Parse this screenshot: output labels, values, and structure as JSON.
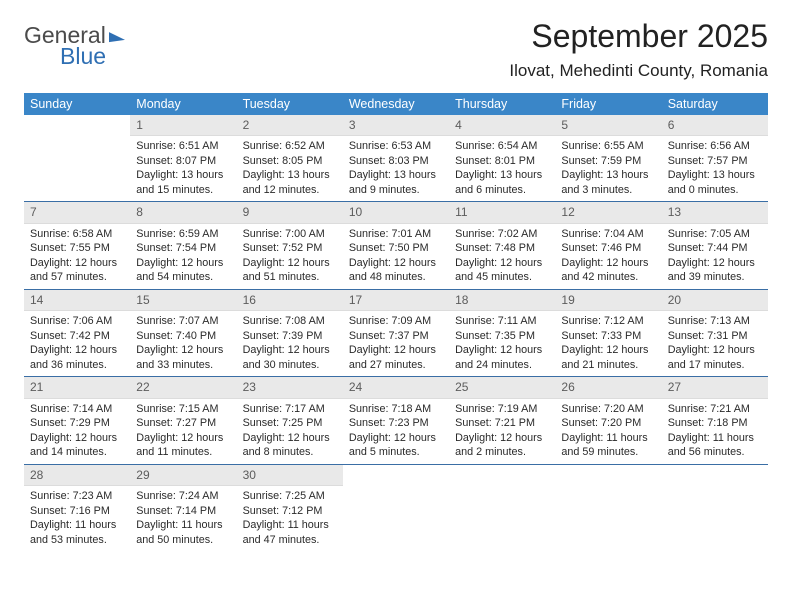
{
  "logo": {
    "top": "General",
    "bottom": "Blue"
  },
  "title": "September 2025",
  "location": "Ilovat, Mehedinti County, Romania",
  "headers": [
    "Sunday",
    "Monday",
    "Tuesday",
    "Wednesday",
    "Thursday",
    "Friday",
    "Saturday"
  ],
  "colors": {
    "header_bg": "#3a86c8",
    "header_fg": "#ffffff",
    "daynum_bg": "#e9e9e9",
    "row_border": "#3a6ea5",
    "logo_accent": "#2f6fb3"
  },
  "fonts": {
    "title_pt": 32,
    "location_pt": 17,
    "header_pt": 12.5,
    "cell_pt": 10.8
  },
  "weeks": [
    [
      null,
      {
        "n": "1",
        "sr": "6:51 AM",
        "ss": "8:07 PM",
        "dl": "13 hours and 15 minutes."
      },
      {
        "n": "2",
        "sr": "6:52 AM",
        "ss": "8:05 PM",
        "dl": "13 hours and 12 minutes."
      },
      {
        "n": "3",
        "sr": "6:53 AM",
        "ss": "8:03 PM",
        "dl": "13 hours and 9 minutes."
      },
      {
        "n": "4",
        "sr": "6:54 AM",
        "ss": "8:01 PM",
        "dl": "13 hours and 6 minutes."
      },
      {
        "n": "5",
        "sr": "6:55 AM",
        "ss": "7:59 PM",
        "dl": "13 hours and 3 minutes."
      },
      {
        "n": "6",
        "sr": "6:56 AM",
        "ss": "7:57 PM",
        "dl": "13 hours and 0 minutes."
      }
    ],
    [
      {
        "n": "7",
        "sr": "6:58 AM",
        "ss": "7:55 PM",
        "dl": "12 hours and 57 minutes."
      },
      {
        "n": "8",
        "sr": "6:59 AM",
        "ss": "7:54 PM",
        "dl": "12 hours and 54 minutes."
      },
      {
        "n": "9",
        "sr": "7:00 AM",
        "ss": "7:52 PM",
        "dl": "12 hours and 51 minutes."
      },
      {
        "n": "10",
        "sr": "7:01 AM",
        "ss": "7:50 PM",
        "dl": "12 hours and 48 minutes."
      },
      {
        "n": "11",
        "sr": "7:02 AM",
        "ss": "7:48 PM",
        "dl": "12 hours and 45 minutes."
      },
      {
        "n": "12",
        "sr": "7:04 AM",
        "ss": "7:46 PM",
        "dl": "12 hours and 42 minutes."
      },
      {
        "n": "13",
        "sr": "7:05 AM",
        "ss": "7:44 PM",
        "dl": "12 hours and 39 minutes."
      }
    ],
    [
      {
        "n": "14",
        "sr": "7:06 AM",
        "ss": "7:42 PM",
        "dl": "12 hours and 36 minutes."
      },
      {
        "n": "15",
        "sr": "7:07 AM",
        "ss": "7:40 PM",
        "dl": "12 hours and 33 minutes."
      },
      {
        "n": "16",
        "sr": "7:08 AM",
        "ss": "7:39 PM",
        "dl": "12 hours and 30 minutes."
      },
      {
        "n": "17",
        "sr": "7:09 AM",
        "ss": "7:37 PM",
        "dl": "12 hours and 27 minutes."
      },
      {
        "n": "18",
        "sr": "7:11 AM",
        "ss": "7:35 PM",
        "dl": "12 hours and 24 minutes."
      },
      {
        "n": "19",
        "sr": "7:12 AM",
        "ss": "7:33 PM",
        "dl": "12 hours and 21 minutes."
      },
      {
        "n": "20",
        "sr": "7:13 AM",
        "ss": "7:31 PM",
        "dl": "12 hours and 17 minutes."
      }
    ],
    [
      {
        "n": "21",
        "sr": "7:14 AM",
        "ss": "7:29 PM",
        "dl": "12 hours and 14 minutes."
      },
      {
        "n": "22",
        "sr": "7:15 AM",
        "ss": "7:27 PM",
        "dl": "12 hours and 11 minutes."
      },
      {
        "n": "23",
        "sr": "7:17 AM",
        "ss": "7:25 PM",
        "dl": "12 hours and 8 minutes."
      },
      {
        "n": "24",
        "sr": "7:18 AM",
        "ss": "7:23 PM",
        "dl": "12 hours and 5 minutes."
      },
      {
        "n": "25",
        "sr": "7:19 AM",
        "ss": "7:21 PM",
        "dl": "12 hours and 2 minutes."
      },
      {
        "n": "26",
        "sr": "7:20 AM",
        "ss": "7:20 PM",
        "dl": "11 hours and 59 minutes."
      },
      {
        "n": "27",
        "sr": "7:21 AM",
        "ss": "7:18 PM",
        "dl": "11 hours and 56 minutes."
      }
    ],
    [
      {
        "n": "28",
        "sr": "7:23 AM",
        "ss": "7:16 PM",
        "dl": "11 hours and 53 minutes."
      },
      {
        "n": "29",
        "sr": "7:24 AM",
        "ss": "7:14 PM",
        "dl": "11 hours and 50 minutes."
      },
      {
        "n": "30",
        "sr": "7:25 AM",
        "ss": "7:12 PM",
        "dl": "11 hours and 47 minutes."
      },
      null,
      null,
      null,
      null
    ]
  ],
  "labels": {
    "sunrise": "Sunrise:",
    "sunset": "Sunset:",
    "daylight": "Daylight:"
  }
}
